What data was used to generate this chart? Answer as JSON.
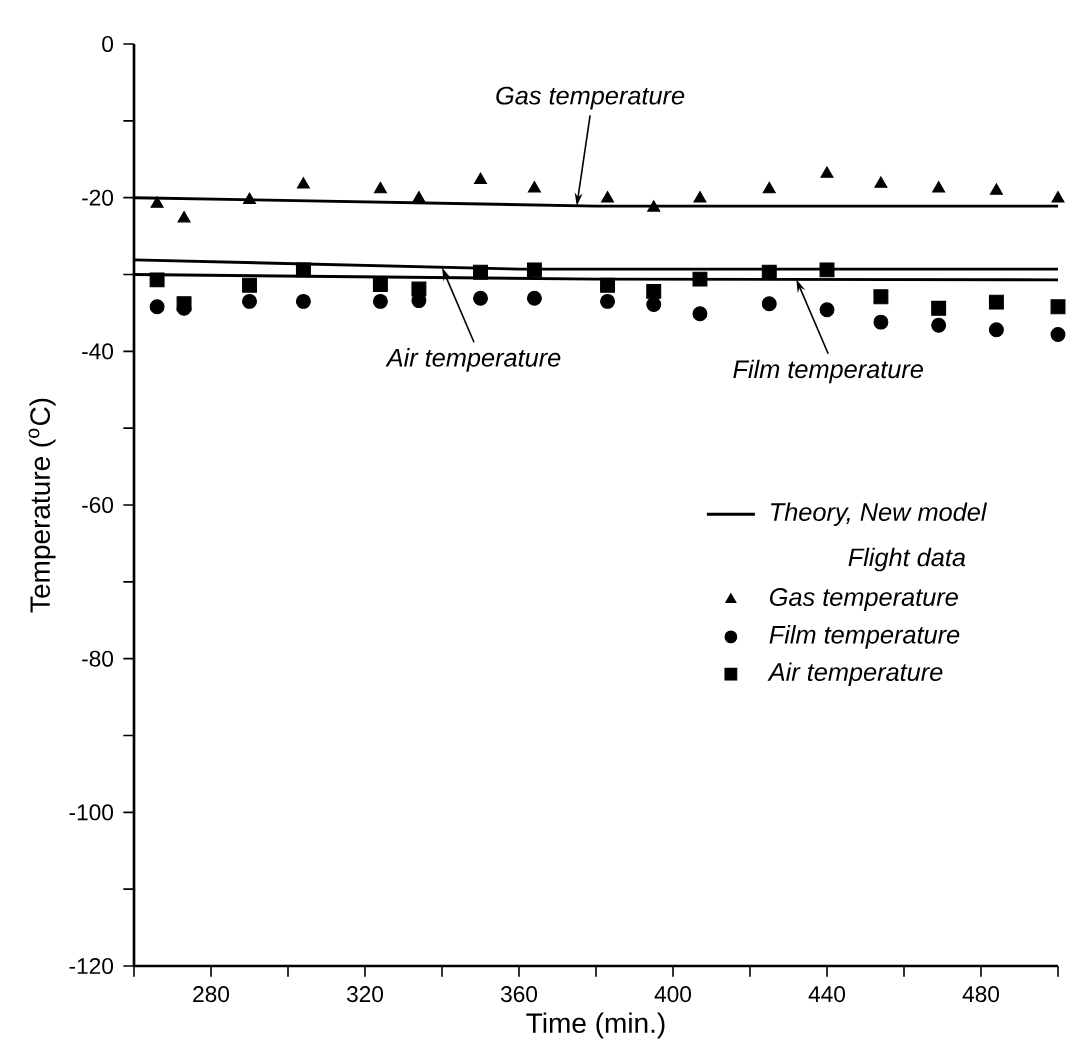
{
  "chart_data": {
    "type": "scatter",
    "xlabel": "Time (min.)",
    "ylabel": "Temperature ($^{o}$C)",
    "xlim": [
      260,
      500
    ],
    "ylim": [
      -120,
      0
    ],
    "xticks": [
      {
        "value": 260,
        "label": null
      },
      280,
      {
        "value": 300,
        "label": null
      },
      320,
      {
        "value": 340,
        "label": null
      },
      360,
      {
        "value": 380,
        "label": null
      },
      400,
      {
        "value": 420,
        "label": null
      },
      440,
      {
        "value": 460,
        "label": null
      },
      480,
      {
        "value": 500,
        "label": null
      }
    ],
    "yticks": [
      -120,
      {
        "value": -110,
        "label": null
      },
      -100,
      {
        "value": -90,
        "label": null
      },
      -80,
      {
        "value": -70,
        "label": null
      },
      -60,
      {
        "value": -50,
        "label": null
      },
      -40,
      {
        "value": -30,
        "label": null
      },
      -20,
      {
        "value": -10,
        "label": null
      },
      0
    ],
    "legend": "right",
    "legend_title": "Flight data",
    "grid": false,
    "series": [
      {
        "name": "Theory, New model",
        "type": "line",
        "marker": "none",
        "line_style": "solid",
        "color": "#000000",
        "x": [
          260,
          380,
          500,
          null,
          260,
          360,
          500,
          null,
          260,
          380,
          500
        ],
        "values": [
          -20.0,
          -21.1,
          -21.1,
          null,
          -28.1,
          -29.3,
          -29.3,
          null,
          -30.0,
          -30.6,
          -30.7
        ]
      },
      {
        "name": "Gas temperature",
        "marker": "triangle",
        "color": "#000000",
        "x": [
          266,
          273,
          290,
          304,
          324,
          334,
          350,
          364,
          383,
          395,
          407,
          425,
          440,
          454,
          469,
          484,
          500
        ],
        "values": [
          -20.8,
          -22.7,
          -20.3,
          -18.3,
          -18.9,
          -20.1,
          -17.7,
          -18.8,
          -20.1,
          -21.3,
          -20.1,
          -18.9,
          -16.9,
          -18.2,
          -18.8,
          -19.1,
          -20.1
        ]
      },
      {
        "name": "Film temperature",
        "marker": "circle",
        "color": "#000000",
        "x": [
          266,
          273,
          290,
          304,
          324,
          334,
          350,
          364,
          383,
          395,
          407,
          425,
          440,
          454,
          469,
          484,
          500
        ],
        "values": [
          -34.2,
          -34.4,
          -33.5,
          -33.5,
          -33.5,
          -33.4,
          -33.1,
          -33.1,
          -33.5,
          -33.9,
          -35.1,
          -33.8,
          -34.6,
          -36.2,
          -36.6,
          -37.2,
          -37.8
        ]
      },
      {
        "name": "Air temperature",
        "marker": "square",
        "color": "#000000",
        "x": [
          266,
          273,
          290,
          304,
          324,
          334,
          350,
          364,
          383,
          395,
          407,
          425,
          440,
          454,
          469,
          484,
          500
        ],
        "values": [
          -30.7,
          -33.8,
          -31.4,
          -29.4,
          -31.3,
          -31.9,
          -29.7,
          -29.4,
          -31.4,
          -32.2,
          -30.6,
          -29.7,
          -29.4,
          -32.9,
          -34.4,
          -33.6,
          -34.2
        ]
      }
    ],
    "annotations": [
      {
        "text": "Gas temperature",
        "x": 375,
        "y": -21.1
      },
      {
        "text": "Air temperature",
        "x": 340,
        "y": -29.1
      },
      {
        "text": "Film temperature",
        "x": 432,
        "y": -30.6
      }
    ]
  }
}
